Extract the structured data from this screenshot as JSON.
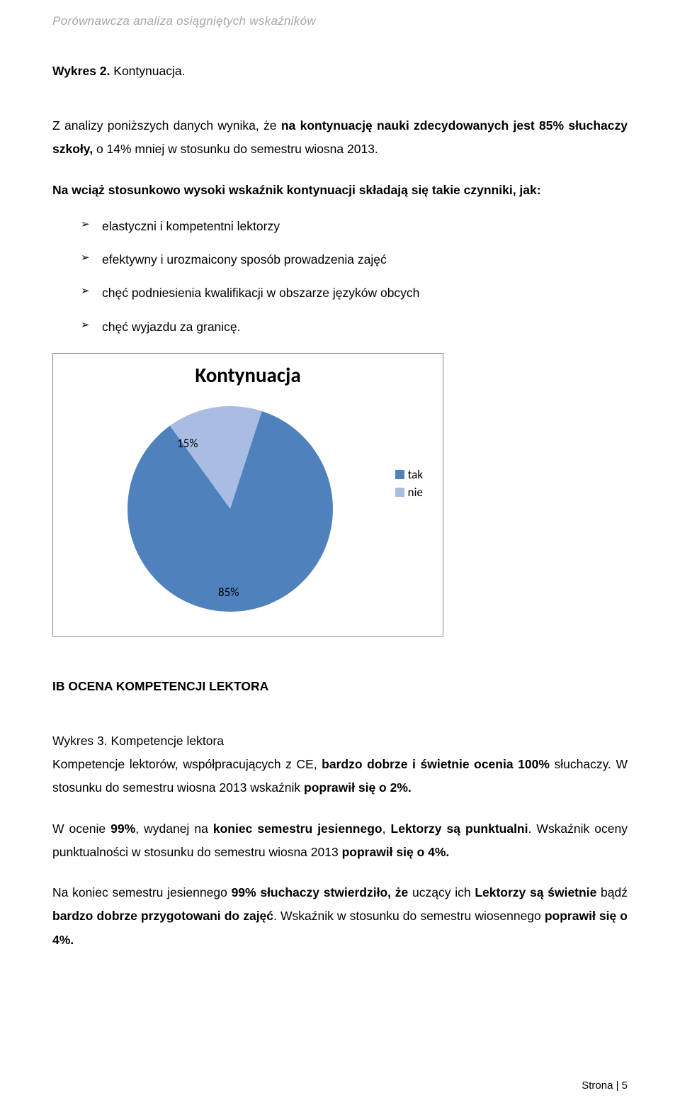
{
  "header": {
    "running_title": "Porównawcza analiza osiągniętych wskaźników"
  },
  "chart_heading": {
    "prefix": "Wykres 2. ",
    "title": "Kontynuacja."
  },
  "intro_para": {
    "text_pre": "Z analizy poniższych danych wynika, że ",
    "bold_1": "na kontynuację nauki zdecydowanych jest 85% słuchaczy szkoły,",
    "text_post": " o 14% mniej w stosunku do semestru wiosna 2013."
  },
  "factors_lead": "Na wciąż stosunkowo wysoki wskaźnik kontynuacji składają się takie czynniki, jak:",
  "factors": [
    "elastyczni i kompetentni lektorzy",
    "efektywny i urozmaicony sposób prowadzenia zajęć",
    "chęć podniesienia kwalifikacji w obszarze języków obcych",
    "chęć wyjazdu za granicę."
  ],
  "pie_chart": {
    "type": "pie",
    "title": "Kontynuacja",
    "title_fontsize": 29,
    "slices": [
      {
        "label": "tak",
        "value": 85,
        "pct_label": "85%",
        "color": "#4f81bd"
      },
      {
        "label": "nie",
        "value": 15,
        "pct_label": "15%",
        "color": "#a9bde3"
      }
    ],
    "start_angle_deg": -36,
    "background_color": "#ffffff",
    "border_color": "#888888",
    "label_fontsize": 17,
    "legend_position": "right"
  },
  "section_ib": {
    "heading": "IB OCENA KOMPETENCJI LEKTORA",
    "wykres3_label": "Wykres 3. Kompetencje lektora",
    "para1_pre": "Kompetencje lektorów, współpracujących z CE, ",
    "para1_bold": "bardzo dobrze i świetnie ocenia 100%",
    "para1_post": " słuchaczy. W stosunku do semestru wiosna 2013 wskaźnik ",
    "para1_bold2": "poprawił się o 2%.",
    "para2_pre": "W ocenie ",
    "para2_b1": "99%",
    "para2_mid1": ", wydanej na ",
    "para2_b2": "koniec semestru jesiennego",
    "para2_mid2": ", ",
    "para2_b3": "Lektorzy są punktualni",
    "para2_mid3": ". Wskaźnik oceny punktualności w stosunku do semestru wiosna 2013 ",
    "para2_b4": "poprawił się o 4%.",
    "para3_pre": "Na koniec semestru jesiennego ",
    "para3_b1": "99% słuchaczy stwierdziło, że",
    "para3_mid1": " uczący ich ",
    "para3_b2": "Lektorzy są świetnie",
    "para3_mid2": " bądź ",
    "para3_b3": "bardzo dobrze przygotowani do zajęć",
    "para3_mid3": ". Wskaźnik w stosunku do semestru wiosennego ",
    "para3_b4": "poprawił się o 4%."
  },
  "footer": {
    "label": "Strona | 5"
  }
}
